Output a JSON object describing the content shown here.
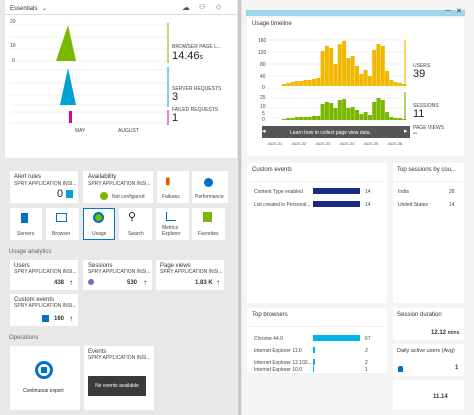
{
  "header": {
    "title": "Essentials",
    "icons": [
      "cloud-sync-icon",
      "users-icon",
      "tag-icon"
    ]
  },
  "mini_charts": {
    "months": [
      "MAY",
      "AUGUST"
    ],
    "rows": [
      {
        "label": "BROWSER PAGE L...",
        "value": "14.46",
        "unit": "s",
        "color": "#7ab800"
      },
      {
        "label": "SERVER REQUESTS",
        "value": "3",
        "color": "#00a2d4"
      },
      {
        "label": "FAILED REQUESTS",
        "value": "1",
        "color": "#e3008c"
      }
    ],
    "y_ticks": [
      "20",
      "10",
      "0"
    ]
  },
  "tiles": {
    "alert_rules": {
      "title": "Alert rules",
      "sub": "SPRY APPLICATION INSI...",
      "value": "0"
    },
    "availability": {
      "title": "Availability",
      "sub": "SPRY APPLICATION INSI...",
      "status": "Not configured"
    },
    "buttons": [
      {
        "label": "Failures",
        "icon": "bar-chart-icon"
      },
      {
        "label": "Performance",
        "icon": "globe-icon"
      },
      {
        "label": "Servers",
        "icon": "server-icon"
      },
      {
        "label": "Browser",
        "icon": "browser-icon"
      },
      {
        "label": "Usage",
        "icon": "usage-icon"
      },
      {
        "label": "Search",
        "icon": "search-icon"
      },
      {
        "label": "Metrics Explorer",
        "icon": "metrics-icon"
      },
      {
        "label": "Favorites",
        "icon": "favorites-icon"
      }
    ]
  },
  "usage_analytics": {
    "heading": "Usage analytics",
    "cards": [
      {
        "title": "Users",
        "sub": "SPRY APPLICATION INSI...",
        "value": "438"
      },
      {
        "title": "Sessions",
        "sub": "SPRY APPLICATION INSI...",
        "value": "530"
      },
      {
        "title": "Page views",
        "sub": "SPRY APPLICATION INSI...",
        "value": "1.83 K"
      }
    ],
    "custom_events": {
      "title": "Custom events",
      "sub": "SPRY APPLICATION INSI...",
      "value": "160"
    }
  },
  "operations": {
    "heading": "Operations",
    "continuous_export": "Continuous export",
    "events": {
      "title": "Events",
      "sub": "SPRY APPLICATION INSI...",
      "empty": "No events available"
    }
  },
  "usage_timeline": {
    "title": "Usage timeline",
    "y_ticks": [
      "160",
      "120",
      "80",
      "40",
      "0"
    ],
    "y_ticks2": [
      "25",
      "10",
      "5",
      "0"
    ],
    "metrics": [
      {
        "label": "USERS",
        "value": "39"
      },
      {
        "label": "SESSIONS",
        "value": "11"
      },
      {
        "label": "PAGE VIEWS",
        "value": "--"
      }
    ],
    "x_ticks": [
      "AUG 21",
      "AUG 22",
      "AUG 23",
      "AUG 24",
      "AUG 25",
      "AUG 26"
    ],
    "tooltip": "Learn how to collect page view data.",
    "users_color": "#f2b700",
    "sessions_color": "#7ab800"
  },
  "custom_events_blade": {
    "title": "Custom events",
    "rows": [
      {
        "name": "Content Type enabled",
        "value": "14",
        "fraction": 1.0
      },
      {
        "name": "List created in Personal...",
        "value": "14",
        "fraction": 1.0
      }
    ],
    "bar_color": "#1a2a8a"
  },
  "top_sessions": {
    "title": "Top sessions by cou...",
    "rows": [
      {
        "name": "India",
        "value": "28"
      },
      {
        "name": "United States",
        "value": "14"
      }
    ]
  },
  "top_browsers": {
    "title": "Top browsers",
    "rows": [
      {
        "name": "Chrome 44.0",
        "value": "67",
        "fraction": 1.0
      },
      {
        "name": "Internet Explorer 11.0",
        "value": "2",
        "fraction": 0.03
      },
      {
        "name": "Internet Explorer 12.102...",
        "value": "2",
        "fraction": 0.03
      },
      {
        "name": "Internet Explorer 10.0",
        "value": "1",
        "fraction": 0.015
      }
    ],
    "bar_color": "#00b4e6"
  },
  "session_duration": {
    "title": "Session duration",
    "value": "12.12",
    "unit": "mins"
  },
  "daily_active_users": {
    "title": "Daily active users (Avg)",
    "value": "1"
  },
  "average_time": {
    "value": "11.14"
  }
}
